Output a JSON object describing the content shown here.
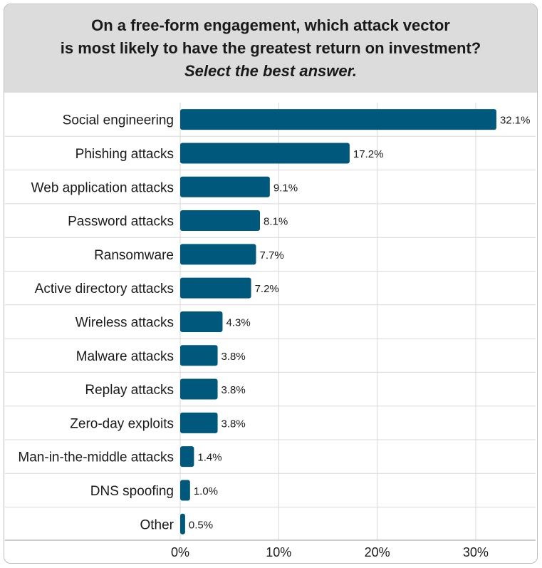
{
  "header": {
    "title_line1": "On a free-form engagement, which attack vector",
    "title_line2": "is most likely to have the greatest return on investment?",
    "subtitle": "Select the best answer."
  },
  "colors": {
    "bar": "#00587c",
    "header_bg": "#dcdcdc",
    "grid": "#d9d9d9"
  },
  "chart_data": {
    "type": "bar",
    "orientation": "horizontal",
    "categories": [
      "Social engineering",
      "Phishing attacks",
      "Web application attacks",
      "Password attacks",
      "Ransomware",
      "Active directory attacks",
      "Wireless attacks",
      "Malware attacks",
      "Replay attacks",
      "Zero-day exploits",
      "Man-in-the-middle attacks",
      "DNS spoofing",
      "Other"
    ],
    "values": [
      32.1,
      17.2,
      9.1,
      8.1,
      7.7,
      7.2,
      4.3,
      3.8,
      3.8,
      3.8,
      1.4,
      1.0,
      0.5
    ],
    "value_labels": [
      "32.1%",
      "17.2%",
      "9.1%",
      "8.1%",
      "7.7%",
      "7.2%",
      "4.3%",
      "3.8%",
      "3.8%",
      "3.8%",
      "1.4%",
      "1.0%",
      "0.5%"
    ],
    "xlim": [
      0,
      35
    ],
    "xticks": [
      0,
      10,
      20,
      30
    ],
    "xtick_labels": [
      "0%",
      "10%",
      "20%",
      "30%"
    ],
    "grid": true,
    "legend": "none"
  }
}
